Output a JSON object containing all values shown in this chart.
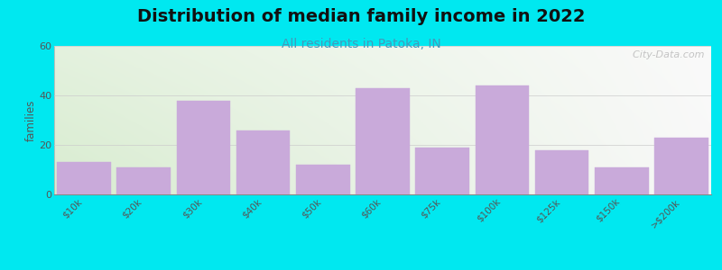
{
  "title": "Distribution of median family income in 2022",
  "subtitle": "All residents in Patoka, IN",
  "categories": [
    "$10k",
    "$20k",
    "$30k",
    "$40k",
    "$50k",
    "$60k",
    "$75k",
    "$100k",
    "$125k",
    "$150k",
    ">$200k"
  ],
  "values": [
    13,
    11,
    38,
    26,
    12,
    43,
    19,
    44,
    18,
    11,
    23
  ],
  "bar_color": "#c9aada",
  "bar_edgecolor": "#c9aada",
  "ylabel": "families",
  "ylim": [
    0,
    60
  ],
  "yticks": [
    0,
    20,
    40,
    60
  ],
  "background_outer": "#00e8f0",
  "title_fontsize": 14,
  "subtitle_fontsize": 10,
  "subtitle_color": "#4499bb",
  "watermark": "  City-Data.com",
  "bg_left_color": "#d8ecd0",
  "bg_right_color": "#f5f5f5"
}
